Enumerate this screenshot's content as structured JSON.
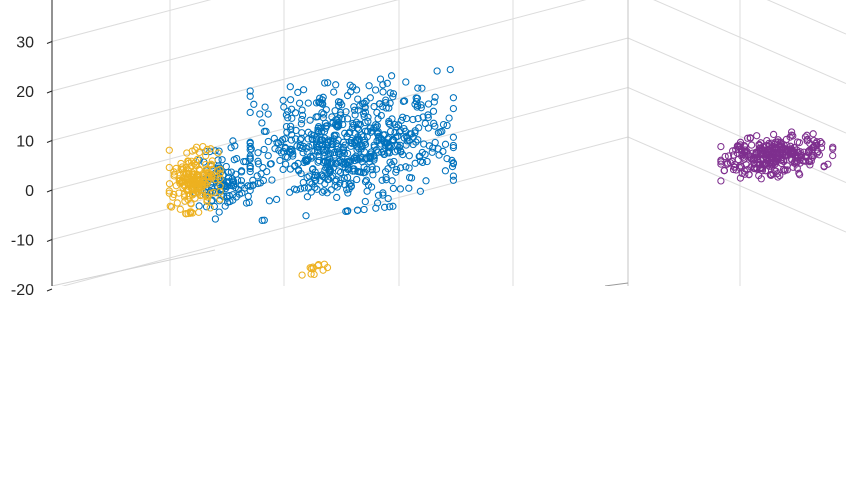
{
  "chart_data": {
    "type": "scatter",
    "view": "3d",
    "title": "",
    "zlabel": "",
    "zlim": [
      -20,
      40
    ],
    "z_ticks": [
      30,
      20,
      10,
      0,
      -10,
      -20
    ],
    "grid": true,
    "legend": "none",
    "series": [
      {
        "color": "#0072BD",
        "marker": "open-circle",
        "clusters": [
          {
            "center": [
              -10,
              9
            ],
            "spread": [
              20,
              12
            ],
            "count": 650
          },
          {
            "center": [
              -38,
              2
            ],
            "spread": [
              7,
              7
            ],
            "count": 120
          }
        ]
      },
      {
        "color": "#EDB120",
        "marker": "open-circle",
        "clusters": [
          {
            "center": [
              -44,
              2
            ],
            "spread": [
              5,
              6
            ],
            "count": 190
          },
          {
            "center": [
              -18,
              -16
            ],
            "spread": [
              2.5,
              1.2
            ],
            "count": 12
          }
        ]
      },
      {
        "color": "#7E2F8E",
        "marker": "open-circle",
        "clusters": [
          {
            "center": [
              82,
              7
            ],
            "spread": [
              11,
              4
            ],
            "count": 330
          }
        ]
      }
    ]
  }
}
